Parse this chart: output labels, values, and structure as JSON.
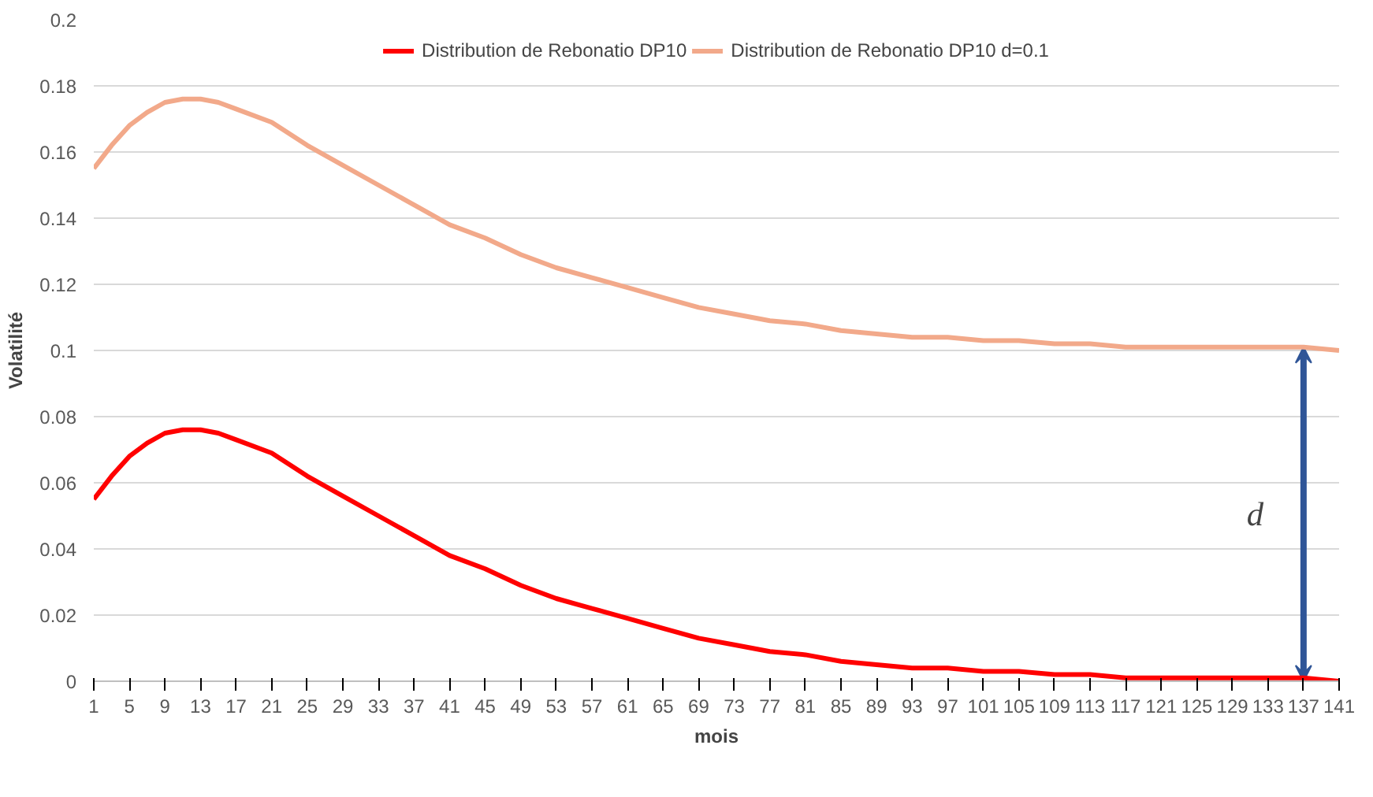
{
  "chart_data": {
    "type": "line",
    "xlabel": "mois",
    "ylabel": "Volatilité",
    "x": [
      1,
      3,
      5,
      7,
      9,
      11,
      13,
      15,
      17,
      21,
      25,
      29,
      33,
      37,
      41,
      45,
      49,
      53,
      57,
      61,
      65,
      69,
      73,
      77,
      81,
      85,
      89,
      93,
      97,
      101,
      105,
      109,
      113,
      117,
      121,
      125,
      129,
      133,
      137,
      141
    ],
    "series": [
      {
        "name": "Distribution de Rebonatio DP10",
        "color": "#ff0000",
        "values": [
          0.055,
          0.062,
          0.068,
          0.072,
          0.075,
          0.076,
          0.076,
          0.075,
          0.073,
          0.069,
          0.062,
          0.056,
          0.05,
          0.044,
          0.038,
          0.034,
          0.029,
          0.025,
          0.022,
          0.019,
          0.016,
          0.013,
          0.011,
          0.009,
          0.008,
          0.006,
          0.005,
          0.004,
          0.004,
          0.003,
          0.003,
          0.002,
          0.002,
          0.001,
          0.001,
          0.001,
          0.001,
          0.001,
          0.001,
          0.0
        ]
      },
      {
        "name": "Distribution de Rebonatio DP10 d=0.1",
        "color": "#f2a98a",
        "values": [
          0.155,
          0.162,
          0.168,
          0.172,
          0.175,
          0.176,
          0.176,
          0.175,
          0.173,
          0.169,
          0.162,
          0.156,
          0.15,
          0.144,
          0.138,
          0.134,
          0.129,
          0.125,
          0.122,
          0.119,
          0.116,
          0.113,
          0.111,
          0.109,
          0.108,
          0.106,
          0.105,
          0.104,
          0.104,
          0.103,
          0.103,
          0.102,
          0.102,
          0.101,
          0.101,
          0.101,
          0.101,
          0.101,
          0.101,
          0.1
        ]
      }
    ],
    "xlim": [
      1,
      141
    ],
    "xticks": [
      1,
      5,
      9,
      13,
      17,
      21,
      25,
      29,
      33,
      37,
      41,
      45,
      49,
      53,
      57,
      61,
      65,
      69,
      73,
      77,
      81,
      85,
      89,
      93,
      97,
      101,
      105,
      109,
      113,
      117,
      121,
      125,
      129,
      133,
      137,
      141
    ],
    "ylim": [
      0,
      0.2
    ],
    "yticks": [
      0,
      0.02,
      0.04,
      0.06,
      0.08,
      0.1,
      0.12,
      0.14,
      0.16,
      0.18,
      0.2
    ],
    "annotations": [
      "d"
    ],
    "grid": "y",
    "legend": "top",
    "marker": "none",
    "line_style": "solid"
  }
}
